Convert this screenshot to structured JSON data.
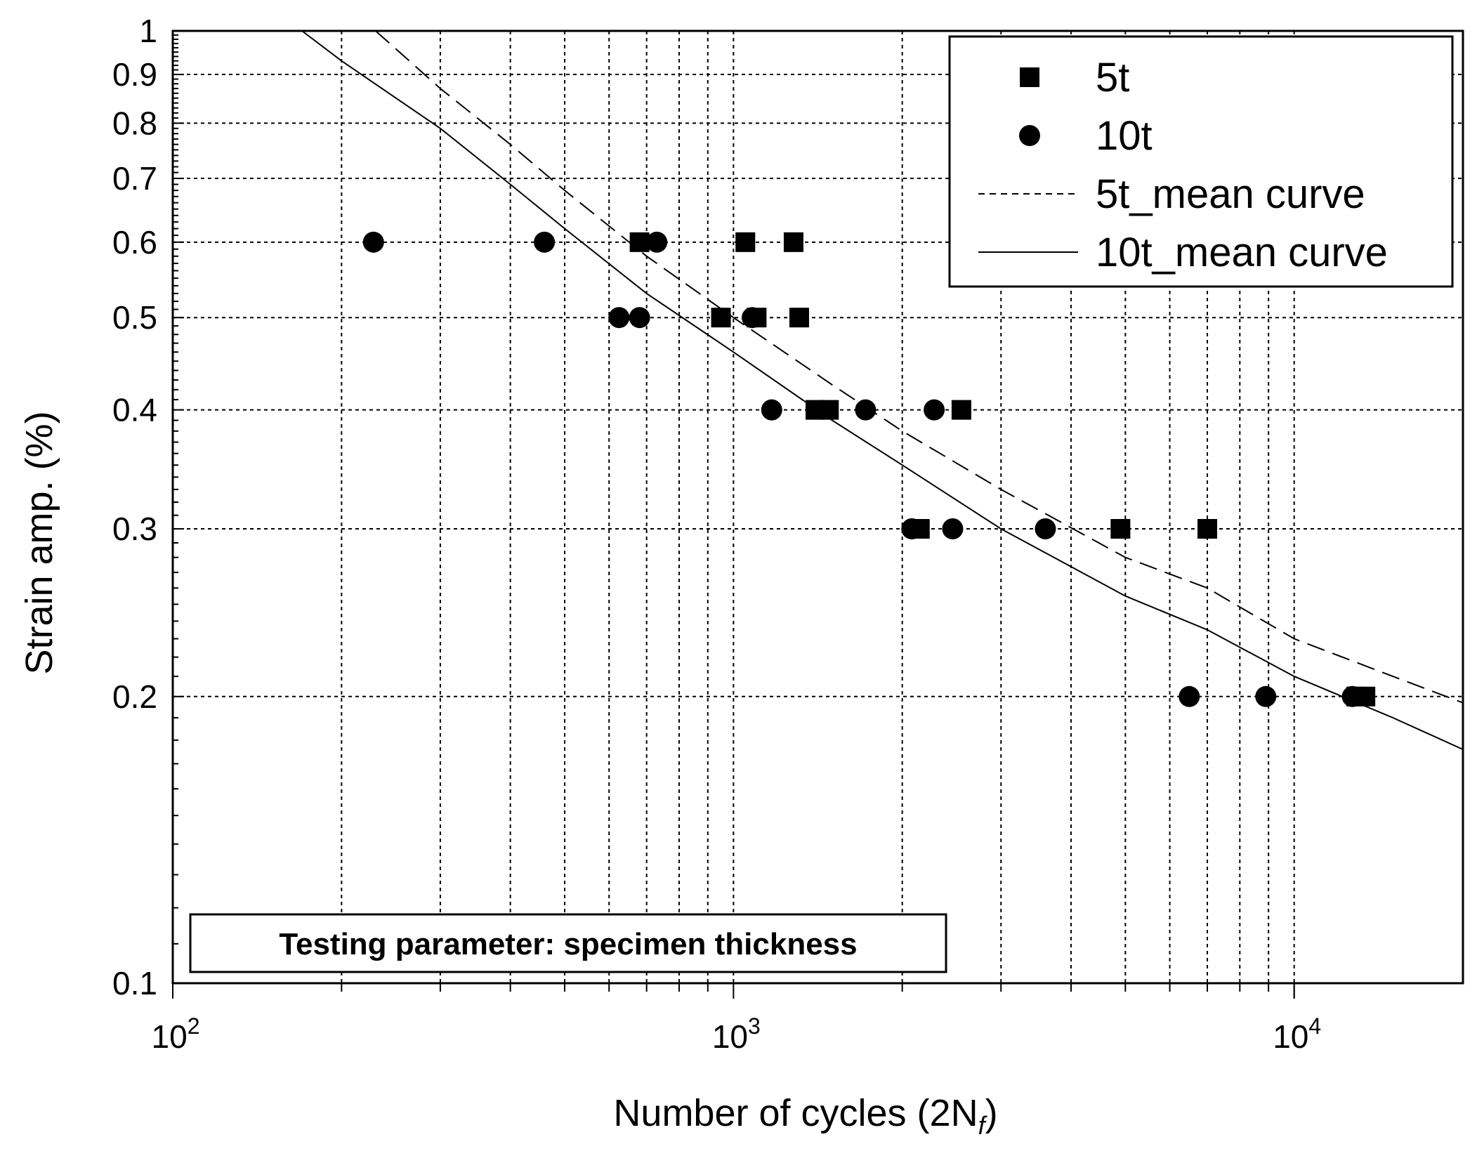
{
  "chart_data": {
    "type": "scatter",
    "title": "",
    "xlabel": "Number of cycles (2N",
    "xlabel_subscript": "f",
    "xlabel_close": ")",
    "ylabel": "Strain amp. (%)",
    "xscale": "log",
    "yscale": "log",
    "xlim": [
      100,
      20000
    ],
    "ylim": [
      0.1,
      1
    ],
    "grid": true,
    "x_tick_labels": [
      {
        "value": 100,
        "base": "10",
        "exp": "2"
      },
      {
        "value": 1000,
        "base": "10",
        "exp": "3"
      },
      {
        "value": 10000,
        "base": "10",
        "exp": "4"
      }
    ],
    "y_tick_labels": [
      {
        "value": 0.1,
        "label": "0.1"
      },
      {
        "value": 0.2,
        "label": "0.2"
      },
      {
        "value": 0.3,
        "label": "0.3"
      },
      {
        "value": 0.4,
        "label": "0.4"
      },
      {
        "value": 0.5,
        "label": "0.5"
      },
      {
        "value": 0.6,
        "label": "0.6"
      },
      {
        "value": 0.7,
        "label": "0.7"
      },
      {
        "value": 0.8,
        "label": "0.8"
      },
      {
        "value": 0.9,
        "label": "0.9"
      },
      {
        "value": 1,
        "label": "1"
      }
    ],
    "legend_position": "top-right",
    "series": [
      {
        "name": "5t",
        "kind": "points",
        "marker": "square",
        "points": [
          [
            680,
            0.6
          ],
          [
            1050,
            0.6
          ],
          [
            1280,
            0.6
          ],
          [
            950,
            0.5
          ],
          [
            1100,
            0.5
          ],
          [
            1310,
            0.5
          ],
          [
            1400,
            0.4
          ],
          [
            1480,
            0.4
          ],
          [
            2550,
            0.4
          ],
          [
            2150,
            0.3
          ],
          [
            4900,
            0.3
          ],
          [
            7000,
            0.3
          ],
          [
            12900,
            0.2
          ],
          [
            13400,
            0.2
          ]
        ]
      },
      {
        "name": "10t",
        "kind": "points",
        "marker": "circle",
        "points": [
          [
            228,
            0.6
          ],
          [
            460,
            0.6
          ],
          [
            730,
            0.6
          ],
          [
            625,
            0.5
          ],
          [
            680,
            0.5
          ],
          [
            1080,
            0.5
          ],
          [
            1170,
            0.4
          ],
          [
            1720,
            0.4
          ],
          [
            2280,
            0.4
          ],
          [
            2080,
            0.3
          ],
          [
            2460,
            0.3
          ],
          [
            3600,
            0.3
          ],
          [
            6500,
            0.2
          ],
          [
            8900,
            0.2
          ],
          [
            12700,
            0.2
          ]
        ]
      },
      {
        "name": "5t_mean curve",
        "kind": "line",
        "style": "dashed",
        "points": [
          [
            230,
            1.0
          ],
          [
            300,
            0.87
          ],
          [
            400,
            0.76
          ],
          [
            500,
            0.68
          ],
          [
            700,
            0.58
          ],
          [
            1000,
            0.5
          ],
          [
            1500,
            0.425
          ],
          [
            2000,
            0.38
          ],
          [
            3000,
            0.33
          ],
          [
            5000,
            0.28
          ],
          [
            7000,
            0.26
          ],
          [
            10000,
            0.23
          ],
          [
            15000,
            0.21
          ],
          [
            20000,
            0.197
          ]
        ]
      },
      {
        "name": "10t_mean curve",
        "kind": "line",
        "style": "solid",
        "points": [
          [
            170,
            1.0
          ],
          [
            200,
            0.93
          ],
          [
            300,
            0.79
          ],
          [
            400,
            0.69
          ],
          [
            500,
            0.62
          ],
          [
            700,
            0.53
          ],
          [
            1000,
            0.46
          ],
          [
            1500,
            0.39
          ],
          [
            2000,
            0.35
          ],
          [
            3000,
            0.3
          ],
          [
            5000,
            0.255
          ],
          [
            7000,
            0.235
          ],
          [
            10000,
            0.21
          ],
          [
            15000,
            0.19
          ],
          [
            20000,
            0.176
          ]
        ]
      }
    ],
    "annotation": "Testing parameter: specimen thickness"
  }
}
